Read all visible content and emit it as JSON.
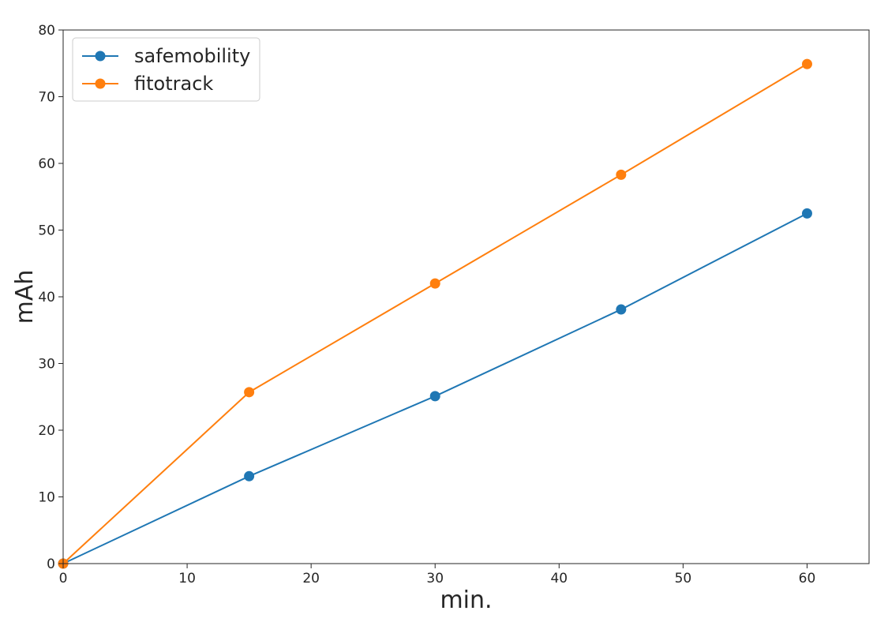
{
  "chart_data": {
    "type": "line",
    "title": "",
    "xlabel": "min.",
    "ylabel": "mAh",
    "xlim": [
      0,
      65
    ],
    "ylim": [
      0,
      80
    ],
    "xticks": [
      0,
      10,
      20,
      30,
      40,
      50,
      60
    ],
    "yticks": [
      0,
      10,
      20,
      30,
      40,
      50,
      60,
      70,
      80
    ],
    "grid": false,
    "legend_position": "upper-left",
    "series": [
      {
        "name": "safemobility",
        "color": "#1f77b4",
        "marker": "circle",
        "x": [
          0,
          15,
          30,
          45,
          60
        ],
        "y": [
          0,
          13.1,
          25.1,
          38.1,
          52.5
        ]
      },
      {
        "name": "fitotrack",
        "color": "#ff7f0e",
        "marker": "circle",
        "x": [
          0,
          15,
          30,
          45,
          60
        ],
        "y": [
          0,
          25.7,
          42.0,
          58.3,
          74.9
        ]
      }
    ]
  }
}
